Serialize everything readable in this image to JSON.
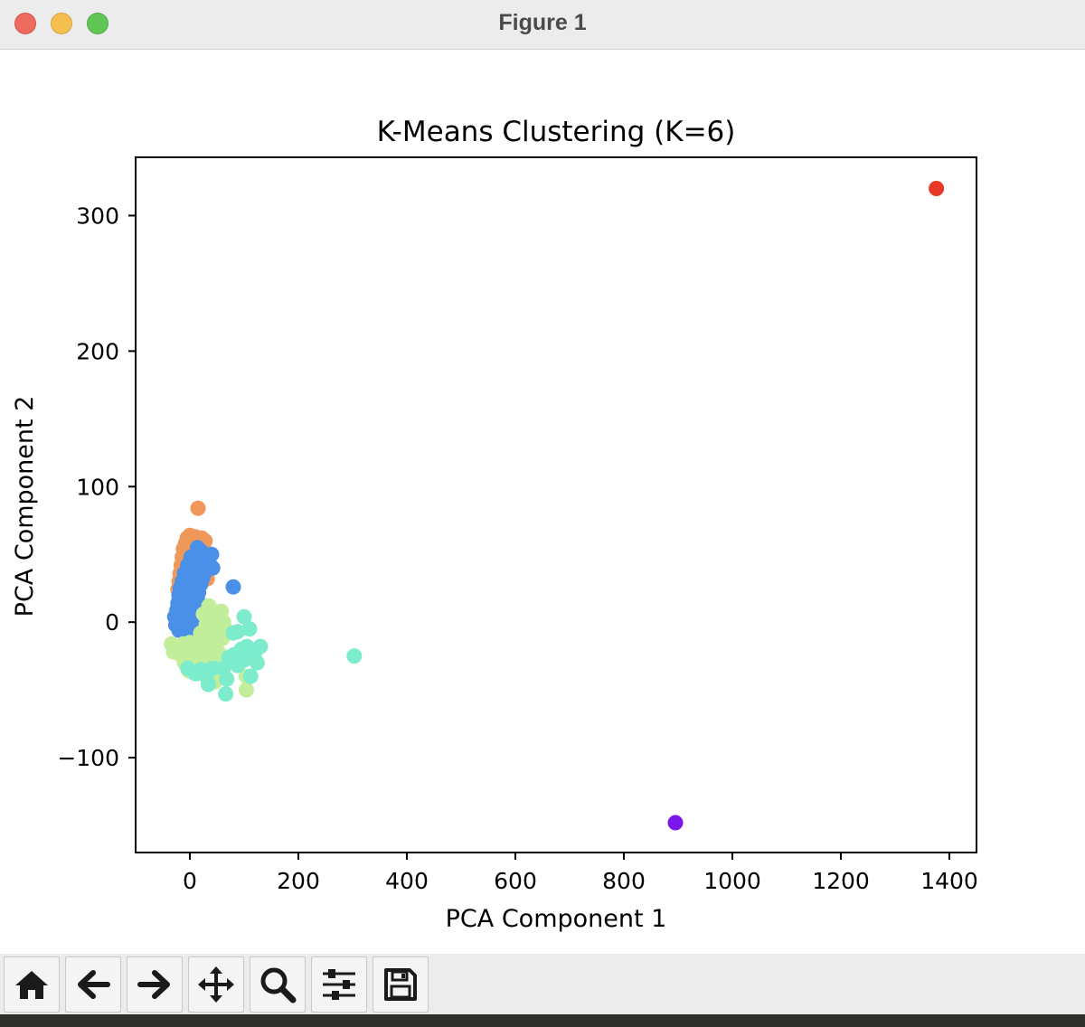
{
  "window": {
    "title": "Figure 1"
  },
  "toolbar": {
    "buttons": [
      {
        "name": "home",
        "icon": "home-icon"
      },
      {
        "name": "back",
        "icon": "arrow-left-icon"
      },
      {
        "name": "forward",
        "icon": "arrow-right-icon"
      },
      {
        "name": "pan",
        "icon": "move-icon"
      },
      {
        "name": "zoom",
        "icon": "magnifier-icon"
      },
      {
        "name": "configure-subplots",
        "icon": "sliders-icon"
      },
      {
        "name": "save",
        "icon": "floppy-disk-icon"
      }
    ]
  },
  "chart_data": {
    "type": "scatter",
    "title": "K-Means Clustering (K=6)",
    "xlabel": "PCA Component 1",
    "ylabel": "PCA Component 2",
    "xlim": [
      -100,
      1450
    ],
    "ylim": [
      -170,
      343
    ],
    "xticks": [
      0,
      200,
      400,
      600,
      800,
      1000,
      1200,
      1400
    ],
    "yticks": [
      -100,
      0,
      100,
      200,
      300
    ],
    "grid": false,
    "legend": "none",
    "series": [
      {
        "color": "#f0985a",
        "points": [
          [
            15,
            84
          ],
          [
            -5,
            62
          ],
          [
            0,
            64
          ],
          [
            5,
            62
          ],
          [
            10,
            63
          ],
          [
            22,
            62
          ],
          [
            28,
            60
          ],
          [
            -8,
            58
          ],
          [
            2,
            58
          ],
          [
            14,
            58
          ],
          [
            25,
            55
          ],
          [
            -12,
            54
          ],
          [
            -2,
            55
          ],
          [
            8,
            55
          ],
          [
            30,
            50
          ],
          [
            -14,
            48
          ],
          [
            -4,
            50
          ],
          [
            6,
            47
          ],
          [
            20,
            48
          ],
          [
            35,
            45
          ],
          [
            -16,
            42
          ],
          [
            -6,
            43
          ],
          [
            4,
            42
          ],
          [
            14,
            42
          ],
          [
            28,
            40
          ],
          [
            -18,
            36
          ],
          [
            -8,
            37
          ],
          [
            2,
            36
          ],
          [
            12,
            36
          ],
          [
            24,
            34
          ],
          [
            32,
            32
          ],
          [
            -20,
            30
          ],
          [
            -10,
            30
          ],
          [
            0,
            30
          ],
          [
            10,
            29
          ],
          [
            -22,
            24
          ],
          [
            -12,
            24
          ],
          [
            -2,
            23
          ],
          [
            -20,
            18
          ],
          [
            -10,
            18
          ],
          [
            -18,
            12
          ],
          [
            -8,
            12
          ],
          [
            -16,
            6
          ]
        ]
      },
      {
        "color": "#4a90e8",
        "points": [
          [
            80,
            26
          ],
          [
            14,
            55
          ],
          [
            22,
            52
          ],
          [
            40,
            50
          ],
          [
            2,
            48
          ],
          [
            10,
            46
          ],
          [
            28,
            44
          ],
          [
            42,
            40
          ],
          [
            -4,
            42
          ],
          [
            6,
            40
          ],
          [
            18,
            40
          ],
          [
            30,
            38
          ],
          [
            -10,
            36
          ],
          [
            0,
            35
          ],
          [
            12,
            34
          ],
          [
            24,
            33
          ],
          [
            -14,
            30
          ],
          [
            -4,
            30
          ],
          [
            8,
            29
          ],
          [
            20,
            28
          ],
          [
            -18,
            25
          ],
          [
            -8,
            24
          ],
          [
            4,
            24
          ],
          [
            16,
            22
          ],
          [
            -20,
            20
          ],
          [
            -10,
            19
          ],
          [
            2,
            18
          ],
          [
            14,
            17
          ],
          [
            -22,
            14
          ],
          [
            -12,
            14
          ],
          [
            0,
            13
          ],
          [
            10,
            12
          ],
          [
            -24,
            9
          ],
          [
            -14,
            8
          ],
          [
            -2,
            7
          ],
          [
            8,
            7
          ],
          [
            -28,
            4
          ],
          [
            -18,
            3
          ],
          [
            -6,
            2
          ],
          [
            4,
            3
          ],
          [
            -26,
            -2
          ],
          [
            -16,
            -2
          ],
          [
            -4,
            -3
          ],
          [
            6,
            -2
          ],
          [
            -20,
            -6
          ],
          [
            -10,
            -7
          ],
          [
            0,
            -8
          ]
        ]
      },
      {
        "color": "#c2ee9c",
        "points": [
          [
            35,
            12
          ],
          [
            45,
            8
          ],
          [
            58,
            8
          ],
          [
            25,
            6
          ],
          [
            40,
            4
          ],
          [
            52,
            2
          ],
          [
            62,
            0
          ],
          [
            30,
            -2
          ],
          [
            44,
            -4
          ],
          [
            56,
            -6
          ],
          [
            68,
            -6
          ],
          [
            20,
            -8
          ],
          [
            34,
            -10
          ],
          [
            48,
            -12
          ],
          [
            60,
            -12
          ],
          [
            -34,
            -16
          ],
          [
            -24,
            -18
          ],
          [
            -12,
            -16
          ],
          [
            0,
            -15
          ],
          [
            12,
            -16
          ],
          [
            24,
            -18
          ],
          [
            38,
            -20
          ],
          [
            52,
            -22
          ],
          [
            -30,
            -22
          ],
          [
            -18,
            -24
          ],
          [
            -6,
            -22
          ],
          [
            6,
            -24
          ],
          [
            18,
            -25
          ],
          [
            30,
            -26
          ],
          [
            44,
            -27
          ],
          [
            58,
            -28
          ],
          [
            -10,
            -30
          ],
          [
            4,
            -32
          ],
          [
            16,
            -32
          ],
          [
            28,
            -33
          ],
          [
            -2,
            -36
          ],
          [
            12,
            -38
          ],
          [
            24,
            -38
          ],
          [
            40,
            -40
          ],
          [
            56,
            -40
          ],
          [
            104,
            -40
          ],
          [
            46,
            -44
          ],
          [
            104,
            -50
          ]
        ]
      },
      {
        "color": "#7ceccc",
        "points": [
          [
            303,
            -25
          ],
          [
            100,
            4
          ],
          [
            110,
            -5
          ],
          [
            88,
            -7
          ],
          [
            80,
            -8
          ],
          [
            130,
            -18
          ],
          [
            105,
            -18
          ],
          [
            95,
            -20
          ],
          [
            120,
            -22
          ],
          [
            82,
            -24
          ],
          [
            72,
            -26
          ],
          [
            124,
            -30
          ],
          [
            100,
            -28
          ],
          [
            88,
            -32
          ],
          [
            62,
            -34
          ],
          [
            42,
            -34
          ],
          [
            20,
            -35
          ],
          [
            30,
            -40
          ],
          [
            68,
            -42
          ],
          [
            112,
            -40
          ],
          [
            34,
            -46
          ],
          [
            66,
            -53
          ],
          [
            -4,
            -34
          ],
          [
            10,
            -38
          ]
        ]
      },
      {
        "color": "#e63a26",
        "points": [
          [
            1376,
            320
          ]
        ]
      },
      {
        "color": "#7a18ec",
        "points": [
          [
            895,
            -148
          ]
        ]
      }
    ]
  }
}
